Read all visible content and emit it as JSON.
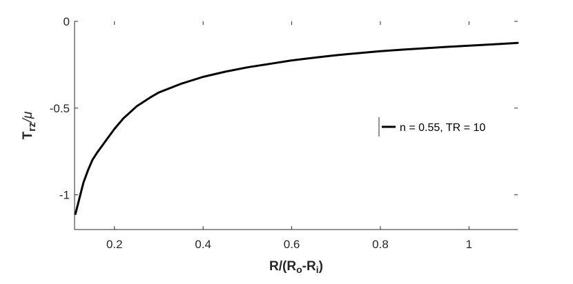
{
  "chart_data": {
    "type": "line",
    "xlabel": {
      "main": "R/(R",
      "sub1": "o",
      "mid": "-R",
      "sub2": "i",
      "end": ")"
    },
    "ylabel": {
      "main": "T",
      "sub": "rz",
      "end": "/μ"
    },
    "xlim": [
      0.11,
      1.11
    ],
    "ylim": [
      -1.2,
      0
    ],
    "x_ticks": [
      0.2,
      0.4,
      0.6,
      0.8,
      1
    ],
    "x_tick_labels": [
      "0.2",
      "0.4",
      "0.6",
      "0.8",
      "1"
    ],
    "y_ticks": [
      0,
      -0.5,
      -1
    ],
    "y_tick_labels": [
      "0",
      "-0.5",
      "-1"
    ],
    "grid": false,
    "legend_position": "right",
    "series": [
      {
        "name": "n = 0.55, TR = 10",
        "color": "#000000",
        "x": [
          0.112,
          0.12,
          0.13,
          0.14,
          0.15,
          0.16,
          0.18,
          0.2,
          0.22,
          0.25,
          0.28,
          0.3,
          0.35,
          0.4,
          0.45,
          0.5,
          0.55,
          0.6,
          0.65,
          0.7,
          0.75,
          0.8,
          0.85,
          0.9,
          0.95,
          1.0,
          1.05,
          1.11
        ],
        "y": [
          -1.11,
          -1.03,
          -0.93,
          -0.86,
          -0.8,
          -0.76,
          -0.69,
          -0.62,
          -0.56,
          -0.49,
          -0.44,
          -0.41,
          -0.36,
          -0.32,
          -0.29,
          -0.265,
          -0.245,
          -0.225,
          -0.21,
          -0.195,
          -0.183,
          -0.172,
          -0.163,
          -0.155,
          -0.147,
          -0.14,
          -0.133,
          -0.124
        ]
      }
    ]
  }
}
